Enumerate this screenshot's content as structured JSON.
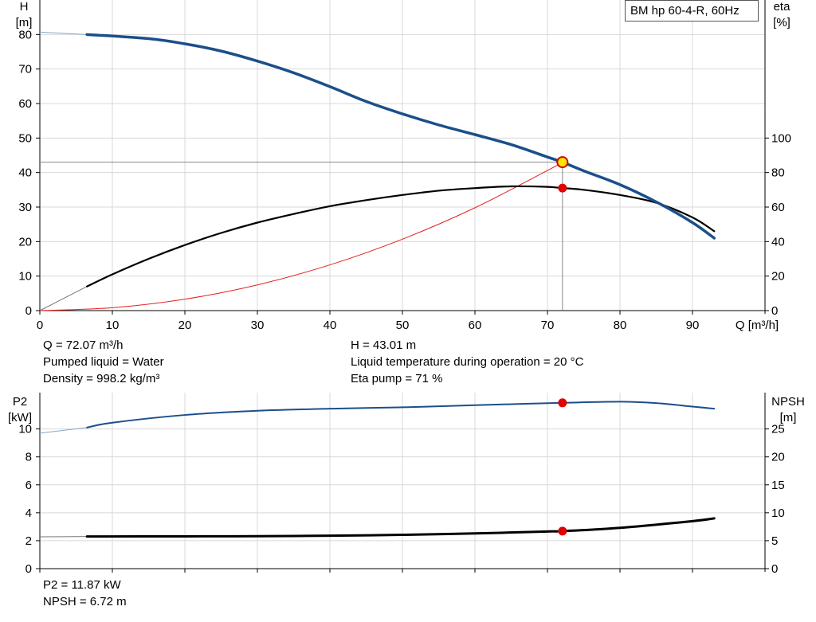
{
  "chart_data": [
    {
      "type": "line",
      "legend": "BM hp 60-4-R, 60Hz",
      "legend_position": "top-right",
      "grid": true,
      "x": {
        "label": "Q [m³/h]",
        "range": [
          0,
          100
        ],
        "ticks": [
          0,
          10,
          20,
          30,
          40,
          50,
          60,
          70,
          80,
          90
        ]
      },
      "y_left": {
        "label_line1": "H",
        "label_line2": "[m]",
        "range": [
          0,
          90
        ],
        "ticks": [
          0,
          10,
          20,
          30,
          40,
          50,
          60,
          70,
          80
        ]
      },
      "y_right": {
        "label_line1": "eta",
        "label_line2": "[%]",
        "range": [
          0,
          180
        ],
        "ticks": [
          0,
          20,
          40,
          60,
          80,
          100
        ]
      },
      "series": [
        {
          "key": "head",
          "axis": "left",
          "color": "#1b4f8a",
          "points": [
            [
              0,
              80.7
            ],
            [
              6.5,
              80
            ],
            [
              15,
              78.8
            ],
            [
              20,
              77.3
            ],
            [
              25,
              75.2
            ],
            [
              30,
              72.3
            ],
            [
              35,
              68.9
            ],
            [
              40,
              64.9
            ],
            [
              45,
              60.6
            ],
            [
              50,
              57.0
            ],
            [
              55,
              53.8
            ],
            [
              60,
              51.0
            ],
            [
              65,
              48.1
            ],
            [
              70,
              44.5
            ],
            [
              72.07,
              43.01
            ],
            [
              75,
              40.5
            ],
            [
              80,
              36.5
            ],
            [
              85,
              31.5
            ],
            [
              90,
              25.5
            ],
            [
              93,
              21.0
            ]
          ]
        },
        {
          "key": "eta",
          "axis": "right",
          "color": "#000000",
          "points": [
            [
              0,
              0
            ],
            [
              6.5,
              14
            ],
            [
              10,
              21
            ],
            [
              15,
              30
            ],
            [
              20,
              38
            ],
            [
              25,
              45
            ],
            [
              30,
              51
            ],
            [
              35,
              56
            ],
            [
              40,
              60.5
            ],
            [
              45,
              64
            ],
            [
              50,
              67
            ],
            [
              55,
              69.5
            ],
            [
              60,
              71
            ],
            [
              65,
              72
            ],
            [
              70,
              71.7
            ],
            [
              72.07,
              71
            ],
            [
              75,
              70
            ],
            [
              80,
              67
            ],
            [
              85,
              62.5
            ],
            [
              90,
              54
            ],
            [
              93,
              46
            ]
          ]
        },
        {
          "key": "system",
          "axis": "left",
          "color": "#e52020",
          "points": [
            [
              0,
              0
            ],
            [
              10,
              0.83
            ],
            [
              20,
              3.31
            ],
            [
              30,
              7.45
            ],
            [
              40,
              13.25
            ],
            [
              50,
              20.7
            ],
            [
              60,
              29.8
            ],
            [
              70,
              40.6
            ],
            [
              72.07,
              43.01
            ]
          ]
        }
      ],
      "operating_point": {
        "q": 72.07,
        "h": 43.01,
        "eta": 71
      }
    },
    {
      "type": "line",
      "grid": true,
      "x": {
        "range": [
          0,
          100
        ],
        "ticks": [
          0,
          10,
          20,
          30,
          40,
          50,
          60,
          70,
          80,
          90
        ]
      },
      "y_left": {
        "label_line1": "P2",
        "label_line2": "[kW]",
        "range": [
          0,
          12.6
        ],
        "ticks": [
          0,
          2,
          4,
          6,
          8,
          10
        ]
      },
      "y_right": {
        "label_line1": "NPSH",
        "label_line2": "[m]",
        "range": [
          0,
          31.5
        ],
        "ticks": [
          0,
          5,
          10,
          15,
          20,
          25
        ]
      },
      "series": [
        {
          "key": "p2",
          "axis": "left",
          "color": "#1b4f8a",
          "points": [
            [
              0,
              9.7
            ],
            [
              6.5,
              10.1
            ],
            [
              10,
              10.45
            ],
            [
              20,
              11.0
            ],
            [
              30,
              11.3
            ],
            [
              40,
              11.45
            ],
            [
              50,
              11.55
            ],
            [
              60,
              11.7
            ],
            [
              72.07,
              11.87
            ],
            [
              80,
              11.95
            ],
            [
              85,
              11.85
            ],
            [
              90,
              11.6
            ],
            [
              93,
              11.45
            ]
          ]
        },
        {
          "key": "npsh",
          "axis": "right",
          "color": "#000000",
          "points": [
            [
              0,
              5.7
            ],
            [
              6.5,
              5.75
            ],
            [
              20,
              5.78
            ],
            [
              30,
              5.8
            ],
            [
              40,
              5.9
            ],
            [
              50,
              6.05
            ],
            [
              60,
              6.3
            ],
            [
              70,
              6.65
            ],
            [
              72.07,
              6.72
            ],
            [
              80,
              7.3
            ],
            [
              90,
              8.5
            ],
            [
              93,
              9.0
            ]
          ]
        }
      ],
      "operating_point": {
        "q": 72.07,
        "p2": 11.87,
        "npsh": 6.72
      }
    }
  ],
  "info_top": {
    "q": "Q = 72.07 m³/h",
    "liquid": "Pumped liquid = Water",
    "density": "Density = 998.2 kg/m³",
    "h": "H = 43.01 m",
    "temp": "Liquid temperature during operation = 20 °C",
    "eta": "Eta pump = 71 %"
  },
  "info_bottom": {
    "p2": "P2 = 11.87 kW",
    "npsh": "NPSH = 6.72 m"
  }
}
